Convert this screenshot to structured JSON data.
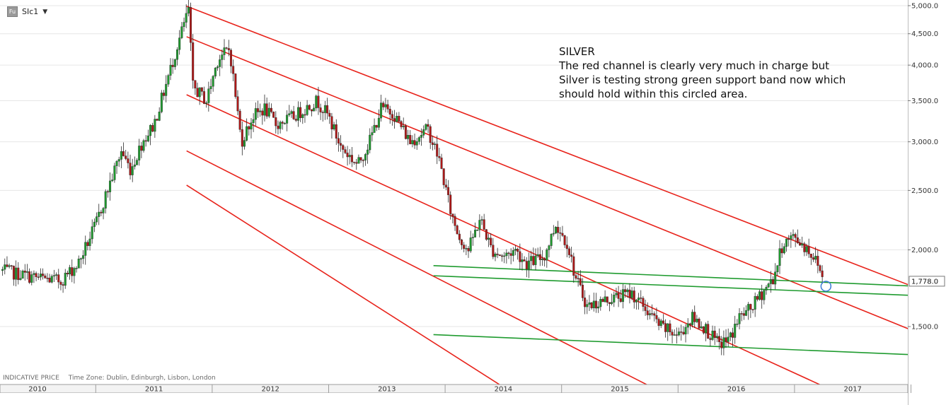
{
  "toolbar": {
    "badge": "Fu",
    "symbol": "SIc1",
    "dropdown_icon": "caret-down-icon"
  },
  "annotation": {
    "title": "SILVER",
    "lines": [
      "The red channel is clearly very much in charge but",
      "Silver is testing strong green support band now which",
      "should hold within this circled area."
    ]
  },
  "footer": {
    "price_type": "INDICATIVE PRICE",
    "timezone": "Time Zone: Dublin, Edinburgh, Lisbon, London"
  },
  "colors": {
    "channel": "#e8231b",
    "support": "#1f9b2f",
    "candle_up": "#1f9b2f",
    "candle_down": "#b01818",
    "circle": "#3a7bd5",
    "grid": "#e6e6e6"
  },
  "chart_data": {
    "type": "candlestick",
    "y_scale": "log",
    "ylim": [
      1250,
      5000
    ],
    "x_range": [
      2009.7,
      2017.8
    ],
    "y_ticks": [
      {
        "value": 5000,
        "label": "5,000.0"
      },
      {
        "value": 4500,
        "label": "4,500.0"
      },
      {
        "value": 4000,
        "label": "4,000.0"
      },
      {
        "value": 3500,
        "label": "3,500.0"
      },
      {
        "value": 3000,
        "label": "3,000.0"
      },
      {
        "value": 2500,
        "label": "2,500.0"
      },
      {
        "value": 2000,
        "label": "2,000.0"
      },
      {
        "value": 1500,
        "label": "1,500.0"
      }
    ],
    "last_price": {
      "value": 1778,
      "label": "1,778.0"
    },
    "x_ticks": [
      {
        "year": 2010,
        "label": "2010"
      },
      {
        "year": 2011,
        "label": "2011"
      },
      {
        "year": 2012,
        "label": "2012"
      },
      {
        "year": 2013,
        "label": "2013"
      },
      {
        "year": 2014,
        "label": "2014"
      },
      {
        "year": 2015,
        "label": "2015"
      },
      {
        "year": 2016,
        "label": "2016"
      },
      {
        "year": 2017,
        "label": "2017"
      }
    ],
    "price_path": [
      [
        2009.7,
        1850
      ],
      [
        2010.0,
        1800
      ],
      [
        2010.2,
        1780
      ],
      [
        2010.35,
        1900
      ],
      [
        2010.5,
        2200
      ],
      [
        2010.6,
        2500
      ],
      [
        2010.72,
        2900
      ],
      [
        2010.8,
        2700
      ],
      [
        2010.9,
        3000
      ],
      [
        2011.0,
        3200
      ],
      [
        2011.1,
        3700
      ],
      [
        2011.2,
        4300
      ],
      [
        2011.3,
        4950
      ],
      [
        2011.33,
        3700
      ],
      [
        2011.45,
        3500
      ],
      [
        2011.55,
        4100
      ],
      [
        2011.65,
        4250
      ],
      [
        2011.75,
        3000
      ],
      [
        2011.85,
        3300
      ],
      [
        2011.95,
        3400
      ],
      [
        2012.05,
        3200
      ],
      [
        2012.2,
        3300
      ],
      [
        2012.4,
        3500
      ],
      [
        2012.5,
        3300
      ],
      [
        2012.6,
        2950
      ],
      [
        2012.75,
        2750
      ],
      [
        2012.85,
        3000
      ],
      [
        2012.95,
        3400
      ],
      [
        2013.05,
        3350
      ],
      [
        2013.2,
        3000
      ],
      [
        2013.35,
        3150
      ],
      [
        2013.45,
        2800
      ],
      [
        2013.55,
        2300
      ],
      [
        2013.62,
        2100
      ],
      [
        2013.7,
        2000
      ],
      [
        2013.8,
        2250
      ],
      [
        2013.9,
        2000
      ],
      [
        2014.0,
        1950
      ],
      [
        2014.1,
        2000
      ],
      [
        2014.2,
        1900
      ],
      [
        2014.35,
        1950
      ],
      [
        2014.45,
        2200
      ],
      [
        2014.55,
        2050
      ],
      [
        2014.62,
        1800
      ],
      [
        2014.72,
        1620
      ],
      [
        2014.85,
        1650
      ],
      [
        2015.0,
        1680
      ],
      [
        2015.1,
        1700
      ],
      [
        2015.2,
        1620
      ],
      [
        2015.35,
        1500
      ],
      [
        2015.5,
        1450
      ],
      [
        2015.62,
        1550
      ],
      [
        2015.72,
        1500
      ],
      [
        2015.85,
        1400
      ],
      [
        2015.95,
        1440
      ],
      [
        2016.02,
        1550
      ],
      [
        2016.12,
        1600
      ],
      [
        2016.22,
        1700
      ],
      [
        2016.32,
        1800
      ],
      [
        2016.4,
        2050
      ],
      [
        2016.5,
        2100
      ],
      [
        2016.62,
        2000
      ],
      [
        2016.7,
        1900
      ],
      [
        2016.75,
        1778
      ]
    ],
    "red_channel": [
      {
        "x0": 2011.28,
        "y0": 4990,
        "x1": 2017.7,
        "y1": 1690
      },
      {
        "x0": 2011.28,
        "y0": 4450,
        "x1": 2017.7,
        "y1": 1430
      },
      {
        "x0": 2011.28,
        "y0": 3580,
        "x1": 2017.0,
        "y1": 1140
      },
      {
        "x0": 2011.28,
        "y0": 2900,
        "x1": 2015.9,
        "y1": 1040
      },
      {
        "x0": 2011.28,
        "y0": 2550,
        "x1": 2014.5,
        "y1": 1040
      }
    ],
    "green_support": [
      {
        "x0": 2013.4,
        "y0": 1885,
        "x1": 2017.7,
        "y1": 1740
      },
      {
        "x0": 2013.4,
        "y0": 1815,
        "x1": 2017.7,
        "y1": 1680
      },
      {
        "x0": 2013.4,
        "y0": 1455,
        "x1": 2017.7,
        "y1": 1345
      }
    ],
    "circle": {
      "x": 2016.77,
      "y": 1745
    }
  }
}
